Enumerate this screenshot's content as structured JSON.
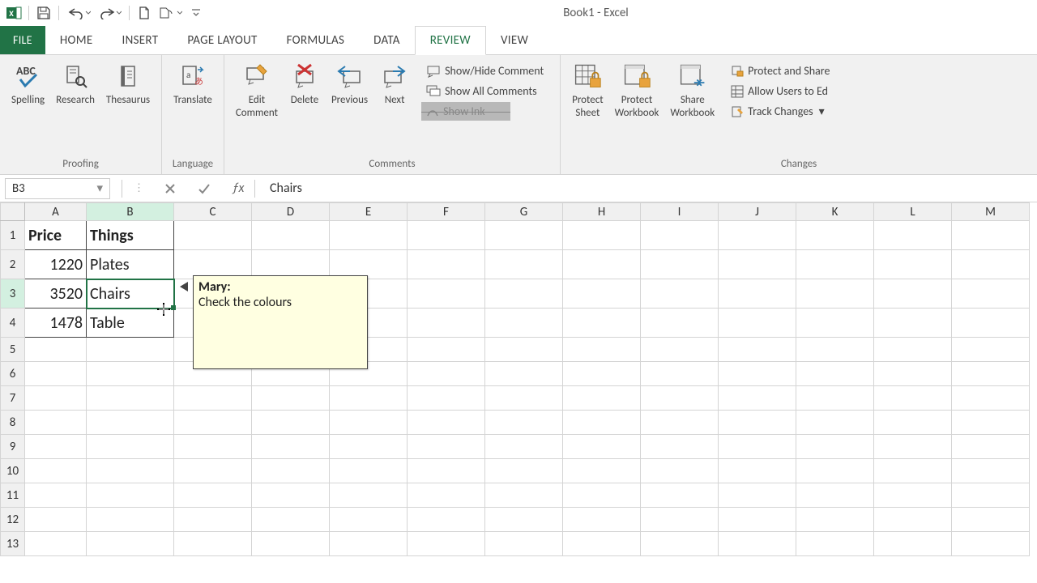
{
  "app": {
    "title": "Book1 - Excel"
  },
  "tabs": {
    "file": "FILE",
    "home": "HOME",
    "insert": "INSERT",
    "page_layout": "PAGE LAYOUT",
    "formulas": "FORMULAS",
    "data": "DATA",
    "review": "REVIEW",
    "view": "VIEW"
  },
  "ribbon": {
    "proofing": {
      "label": "Proofing",
      "spelling": "Spelling",
      "research": "Research",
      "thesaurus": "Thesaurus"
    },
    "language": {
      "label": "Language",
      "translate": "Translate"
    },
    "comments": {
      "label": "Comments",
      "edit": "Edit\nComment",
      "delete": "Delete",
      "previous": "Previous",
      "next": "Next",
      "show_hide": "Show/Hide Comment",
      "show_all": "Show All Comments",
      "show_ink": "Show Ink"
    },
    "changes": {
      "label": "Changes",
      "protect_sheet": "Protect\nSheet",
      "protect_workbook": "Protect\nWorkbook",
      "share_workbook": "Share\nWorkbook",
      "protect_share": "Protect and Share",
      "allow_users": "Allow Users to Ed",
      "track_changes": "Track Changes"
    }
  },
  "formula_bar": {
    "name_box": "B3",
    "value": "Chairs"
  },
  "grid": {
    "columns": [
      "A",
      "B",
      "C",
      "D",
      "E",
      "F",
      "G",
      "H",
      "I",
      "J",
      "K",
      "L",
      "M"
    ],
    "selected_col": "B",
    "selected_row": 3,
    "rows": [
      {
        "n": 1,
        "A": "Price",
        "B": "Things"
      },
      {
        "n": 2,
        "A": "1220",
        "B": "Plates"
      },
      {
        "n": 3,
        "A": "3520",
        "B": "Chairs"
      },
      {
        "n": 4,
        "A": "1478",
        "B": "Table"
      },
      {
        "n": 5
      },
      {
        "n": 6
      },
      {
        "n": 7
      },
      {
        "n": 8
      },
      {
        "n": 9
      },
      {
        "n": 10
      },
      {
        "n": 11
      },
      {
        "n": 12
      },
      {
        "n": 13
      }
    ]
  },
  "comment": {
    "author": "Mary:",
    "text": "Check the colours"
  },
  "colors": {
    "accent": "#217346",
    "grid_border": "#d4d4d4",
    "ribbon_bg": "#f1f1f1",
    "comment_bg": "#ffffe1"
  }
}
